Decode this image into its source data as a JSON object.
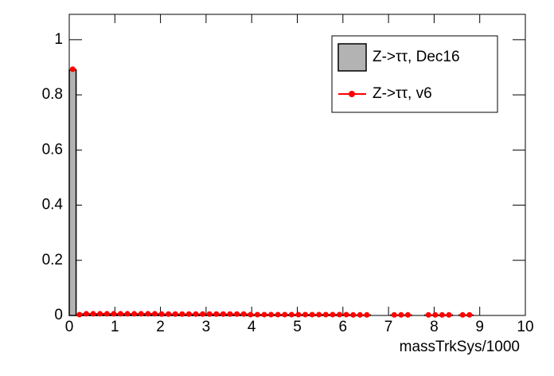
{
  "chart_data": {
    "type": "histogram",
    "x_label": "massTrkSys/1000",
    "bins": [
      0,
      0.15,
      0.3,
      0.45,
      0.6,
      0.75,
      0.9,
      1.05,
      1.2,
      1.35,
      1.5,
      1.65,
      1.8,
      1.95,
      2.1,
      2.25,
      2.4,
      2.55,
      2.7,
      2.85,
      3,
      3.15,
      3.3,
      3.45,
      3.6,
      3.75,
      3.9,
      4.05,
      4.2,
      4.35,
      4.5,
      4.65,
      4.8,
      4.95,
      5.1,
      5.25,
      5.4,
      5.55,
      5.7,
      5.85,
      6,
      6.15,
      6.3,
      6.45,
      6.6,
      6.75,
      6.9,
      7.05,
      7.2,
      7.35,
      7.5,
      7.65,
      7.8,
      7.95,
      8.1,
      8.25,
      8.4,
      8.55,
      8.7,
      8.85,
      9
    ],
    "series": [
      {
        "name": "Z->ττ, Dec16",
        "color": "#b3b3b3",
        "style": "bar",
        "values": [
          0.89,
          0.003,
          0.006,
          0.006,
          0.006,
          0.006,
          0.006,
          0.006,
          0.006,
          0.006,
          0.006,
          0.006,
          0.006,
          0.005,
          0.005,
          0.005,
          0.005,
          0.005,
          0.005,
          0.005,
          0.005,
          0.005,
          0.005,
          0.005,
          0.005,
          0.005,
          0.003,
          0.003,
          0.003,
          0.003,
          0.003,
          0.003,
          0.003,
          0.003,
          0.003,
          0.003,
          0.003,
          0.003,
          0.003,
          0.003,
          0.003,
          0.002,
          0.002,
          0.002,
          0,
          0,
          0,
          0.002,
          0.002,
          0.002,
          0,
          0,
          0.002,
          0.002,
          0.002,
          0.002,
          0,
          0.002,
          0.002,
          0
        ]
      },
      {
        "name": "Z->ττ, v6",
        "color": "#ff0000",
        "style": "points",
        "values": [
          0.893,
          0.003,
          0.006,
          0.006,
          0.006,
          0.006,
          0.006,
          0.006,
          0.006,
          0.006,
          0.006,
          0.006,
          0.006,
          0.005,
          0.005,
          0.005,
          0.005,
          0.005,
          0.005,
          0.005,
          0.005,
          0.005,
          0.005,
          0.005,
          0.005,
          0.005,
          0.003,
          0.003,
          0.003,
          0.003,
          0.003,
          0.003,
          0.003,
          0.003,
          0.003,
          0.003,
          0.003,
          0.003,
          0.003,
          0.003,
          0.003,
          0.002,
          0.002,
          0.002,
          null,
          null,
          null,
          0.002,
          0.002,
          0.002,
          null,
          null,
          0.002,
          0.002,
          0.002,
          0.002,
          null,
          0.002,
          0.002,
          null
        ]
      }
    ],
    "xlim": [
      0,
      10
    ],
    "xticks": [
      0,
      1,
      2,
      3,
      4,
      5,
      6,
      7,
      8,
      9,
      10
    ],
    "ylim": [
      0,
      1.092
    ],
    "yticks": [
      0,
      0.2,
      0.4,
      0.6,
      0.8,
      1
    ],
    "legend": "upper right"
  }
}
